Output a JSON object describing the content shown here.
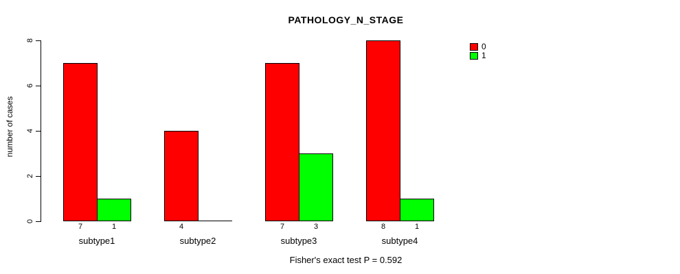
{
  "chart_data": {
    "type": "bar",
    "title": "PATHOLOGY_N_STAGE",
    "xlabel": "",
    "ylabel": "number of cases",
    "categories": [
      "subtype1",
      "subtype2",
      "subtype3",
      "subtype4"
    ],
    "series": [
      {
        "name": "0",
        "color": "#FF0000",
        "values": [
          7,
          4,
          7,
          8
        ]
      },
      {
        "name": "1",
        "color": "#00FF00",
        "values": [
          1,
          0,
          3,
          1
        ]
      }
    ],
    "ylim": [
      0,
      8
    ],
    "yticks": [
      0,
      2,
      4,
      6,
      8
    ],
    "grid": false,
    "bar_value_labels_shown": true,
    "legend_position": "top-right",
    "annotation": "Fisher's exact test P = 0.592"
  }
}
